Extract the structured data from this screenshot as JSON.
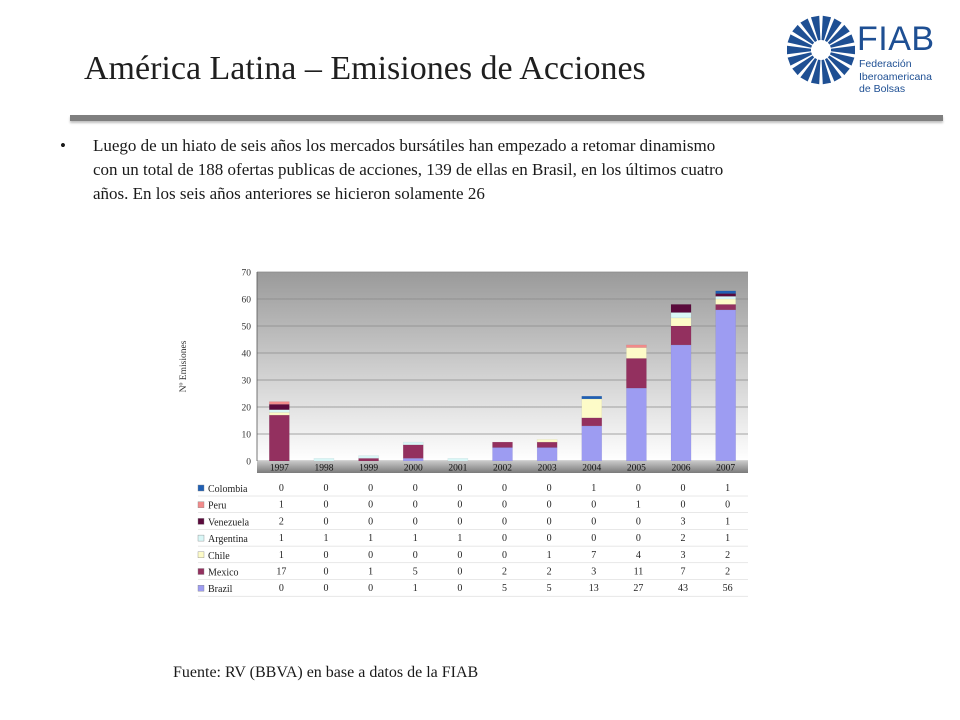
{
  "title": "América Latina – Emisiones de Acciones",
  "logo": {
    "name": "FIAB",
    "subtitle_lines": [
      "Federación",
      "Iberoamericana",
      "de Bolsas"
    ]
  },
  "bullet": {
    "marker": "•",
    "lines": [
      "Luego de un hiato de seis años los mercados bursátiles han empezado a retomar dinamismo",
      "con un total de 188 ofertas publicas de acciones, 139 de ellas en Brasil, en los últimos cuatro",
      "años. En los seis años anteriores se hicieron solamente 26"
    ]
  },
  "source": "Fuente: RV (BBVA) en base a datos de la FIAB",
  "colors": {
    "Colombia": "#1f5fb4",
    "Peru": "#f28b8b",
    "Venezuela": "#5a0a3c",
    "Argentina": "#d9f7f7",
    "Chile": "#fdfbc8",
    "Mexico": "#93305f",
    "Brazil": "#9d9cf2",
    "plot_bg_top": "#9a9a9a",
    "plot_bg_bottom": "#ffffff"
  },
  "chart_data": {
    "type": "bar",
    "stacked": true,
    "ylabel": "Nº Emisiones",
    "ylim": [
      0,
      70
    ],
    "yticks": [
      0,
      10,
      20,
      30,
      40,
      50,
      60,
      70
    ],
    "categories": [
      "1997",
      "1998",
      "1999",
      "2000",
      "2001",
      "2002",
      "2003",
      "2004",
      "2005",
      "2006",
      "2007"
    ],
    "series": [
      {
        "name": "Colombia",
        "values": [
          0,
          0,
          0,
          0,
          0,
          0,
          0,
          1,
          0,
          0,
          1
        ]
      },
      {
        "name": "Peru",
        "values": [
          1,
          0,
          0,
          0,
          0,
          0,
          0,
          0,
          1,
          0,
          0
        ]
      },
      {
        "name": "Venezuela",
        "values": [
          2,
          0,
          0,
          0,
          0,
          0,
          0,
          0,
          0,
          3,
          1
        ]
      },
      {
        "name": "Argentina",
        "values": [
          1,
          1,
          1,
          1,
          1,
          0,
          0,
          0,
          0,
          2,
          1
        ]
      },
      {
        "name": "Chile",
        "values": [
          1,
          0,
          0,
          0,
          0,
          0,
          1,
          7,
          4,
          3,
          2
        ]
      },
      {
        "name": "Mexico",
        "values": [
          17,
          0,
          1,
          5,
          0,
          2,
          2,
          3,
          11,
          7,
          2
        ]
      },
      {
        "name": "Brazil",
        "values": [
          0,
          0,
          0,
          1,
          0,
          5,
          5,
          13,
          27,
          43,
          56
        ]
      }
    ],
    "stack_order_bottom_to_top": [
      "Brazil",
      "Mexico",
      "Chile",
      "Argentina",
      "Venezuela",
      "Peru",
      "Colombia"
    ],
    "data_table": true,
    "grid": true
  }
}
